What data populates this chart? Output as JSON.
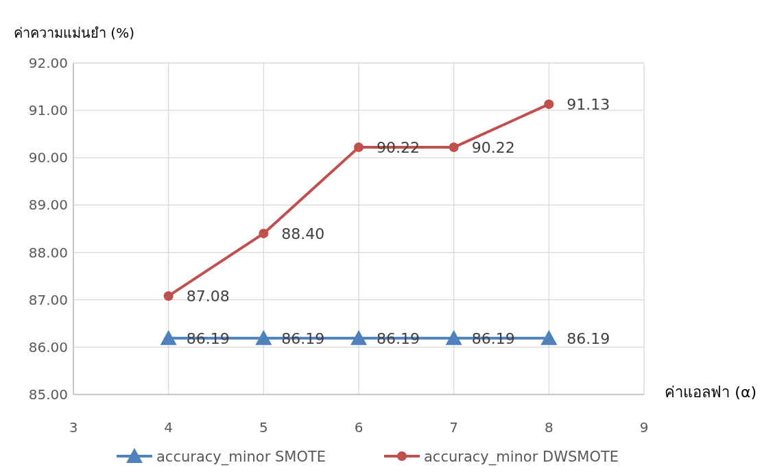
{
  "chart_data": {
    "type": "line",
    "xlabel": "ค่าแอลฟา (α)",
    "ylabel": "ค่าความแม่นยำ (%)",
    "x": [
      4,
      5,
      6,
      7,
      8
    ],
    "xlim": [
      3,
      9
    ],
    "xticks": [
      3,
      4,
      5,
      6,
      7,
      8,
      9
    ],
    "ylim": [
      85,
      92
    ],
    "yticks": [
      {
        "value": 85,
        "label": "85.00"
      },
      {
        "value": 86,
        "label": "86.00"
      },
      {
        "value": 87,
        "label": "87.00"
      },
      {
        "value": 88,
        "label": "88.00"
      },
      {
        "value": 89,
        "label": "89.00"
      },
      {
        "value": 90,
        "label": "90.00"
      },
      {
        "value": 91,
        "label": "91.00"
      },
      {
        "value": 92,
        "label": "92.00"
      }
    ],
    "grid": true,
    "legend": "bottom",
    "line_style": "solid",
    "series": [
      {
        "name": "accuracy_minor SMOTE",
        "color": "#4f81bd",
        "marker": "triangle",
        "values": [
          86.19,
          86.19,
          86.19,
          86.19,
          86.19
        ],
        "value_labels": [
          "86.19",
          "86.19",
          "86.19",
          "86.19",
          "86.19"
        ]
      },
      {
        "name": "accuracy_minor DWSMOTE",
        "color": "#c0504d",
        "marker": "circle",
        "values": [
          87.08,
          88.4,
          90.22,
          90.22,
          91.13
        ],
        "value_labels": [
          "87.08",
          "88.40",
          "90.22",
          "90.22",
          "91.13"
        ]
      }
    ]
  }
}
